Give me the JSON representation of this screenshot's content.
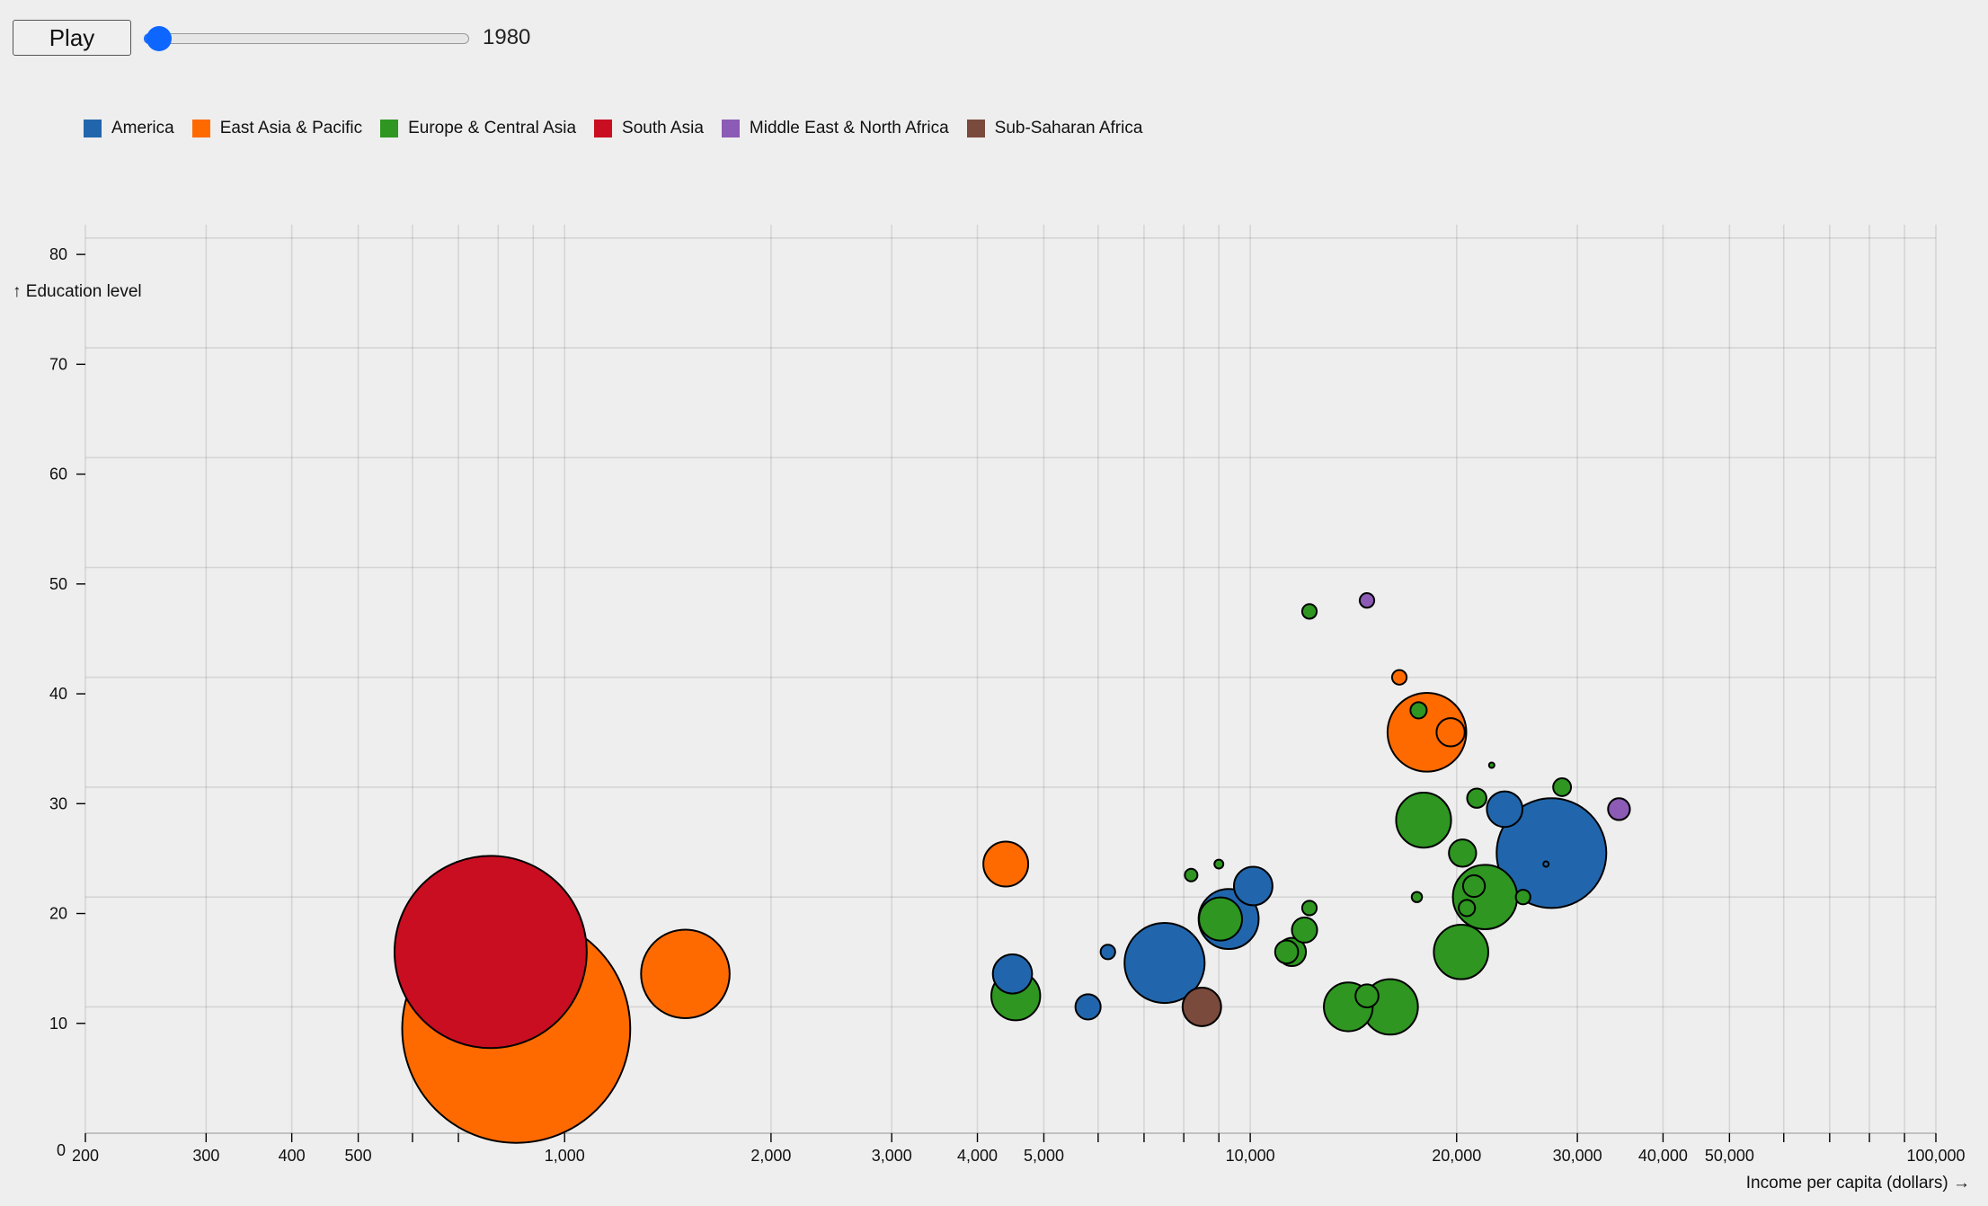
{
  "controls": {
    "play_label": "Play",
    "year": "1980",
    "slider_position": 0
  },
  "legend": [
    {
      "label": "America",
      "color": "#2166ac"
    },
    {
      "label": "East Asia & Pacific",
      "color": "#ff6a00"
    },
    {
      "label": "Europe & Central Asia",
      "color": "#2e9621"
    },
    {
      "label": "South Asia",
      "color": "#c90e21"
    },
    {
      "label": "Middle East & North Africa",
      "color": "#8c5bb5"
    },
    {
      "label": "Sub-Saharan Africa",
      "color": "#7a4a3c"
    }
  ],
  "chart_data": {
    "type": "scatter",
    "subtype": "bubble",
    "xlabel": "Income per capita (dollars) →",
    "ylabel": "↑ Education level",
    "xscale": "log",
    "xlim": [
      200,
      100000
    ],
    "ylim": [
      0,
      85
    ],
    "grid": true,
    "legend_position": "top-left",
    "x_ticks": [
      {
        "value": 200,
        "label": "200"
      },
      {
        "value": 300,
        "label": "300"
      },
      {
        "value": 400,
        "label": "400"
      },
      {
        "value": 500,
        "label": "500"
      },
      {
        "value": 600,
        "label": ""
      },
      {
        "value": 700,
        "label": ""
      },
      {
        "value": 800,
        "label": ""
      },
      {
        "value": 900,
        "label": ""
      },
      {
        "value": 1000,
        "label": "1,000"
      },
      {
        "value": 2000,
        "label": "2,000"
      },
      {
        "value": 3000,
        "label": "3,000"
      },
      {
        "value": 4000,
        "label": "4,000"
      },
      {
        "value": 5000,
        "label": "5,000"
      },
      {
        "value": 6000,
        "label": ""
      },
      {
        "value": 7000,
        "label": ""
      },
      {
        "value": 8000,
        "label": ""
      },
      {
        "value": 9000,
        "label": ""
      },
      {
        "value": 10000,
        "label": "10,000"
      },
      {
        "value": 20000,
        "label": "20,000"
      },
      {
        "value": 30000,
        "label": "30,000"
      },
      {
        "value": 40000,
        "label": "40,000"
      },
      {
        "value": 50000,
        "label": "50,000"
      },
      {
        "value": 60000,
        "label": ""
      },
      {
        "value": 70000,
        "label": ""
      },
      {
        "value": 80000,
        "label": ""
      },
      {
        "value": 90000,
        "label": ""
      },
      {
        "value": 100000,
        "label": "100,000"
      }
    ],
    "y_ticks": [
      {
        "value": 0,
        "label": "0"
      },
      {
        "value": 10,
        "label": "10"
      },
      {
        "value": 20,
        "label": "20"
      },
      {
        "value": 30,
        "label": "30"
      },
      {
        "value": 40,
        "label": "40"
      },
      {
        "value": 50,
        "label": "50"
      },
      {
        "value": 60,
        "label": "60"
      },
      {
        "value": 70,
        "label": "70"
      },
      {
        "value": 80,
        "label": "80"
      }
    ],
    "y_gridlines": [
      11.5,
      21.5,
      31.5,
      41.5,
      51.5,
      61.5,
      71.5,
      81.5
    ],
    "size_unit": "population (millions, estimated)",
    "points": [
      {
        "region": "East Asia & Pacific",
        "x": 850,
        "y": 9.5,
        "size": 981
      },
      {
        "region": "South Asia",
        "x": 780,
        "y": 16.5,
        "size": 697
      },
      {
        "region": "East Asia & Pacific",
        "x": 1500,
        "y": 14.5,
        "size": 148
      },
      {
        "region": "East Asia & Pacific",
        "x": 4400,
        "y": 24.5,
        "size": 38
      },
      {
        "region": "America",
        "x": 4500,
        "y": 14.5,
        "size": 29
      },
      {
        "region": "Europe & Central Asia",
        "x": 4550,
        "y": 12.5,
        "size": 45
      },
      {
        "region": "America",
        "x": 5800,
        "y": 11.5,
        "size": 12
      },
      {
        "region": "America",
        "x": 6200,
        "y": 16.5,
        "size": 4
      },
      {
        "region": "America",
        "x": 7500,
        "y": 15.5,
        "size": 121
      },
      {
        "region": "Sub-Saharan Africa",
        "x": 8500,
        "y": 11.5,
        "size": 28
      },
      {
        "region": "Europe & Central Asia",
        "x": 8200,
        "y": 23.5,
        "size": 3
      },
      {
        "region": "Europe & Central Asia",
        "x": 9000,
        "y": 24.5,
        "size": 1.5
      },
      {
        "region": "America",
        "x": 9300,
        "y": 19.5,
        "size": 68
      },
      {
        "region": "Europe & Central Asia",
        "x": 9050,
        "y": 19.5,
        "size": 35
      },
      {
        "region": "America",
        "x": 10100,
        "y": 22.5,
        "size": 28
      },
      {
        "region": "Europe & Central Asia",
        "x": 11300,
        "y": 16.5,
        "size": 10
      },
      {
        "region": "Europe & Central Asia",
        "x": 11500,
        "y": 16.5,
        "size": 15
      },
      {
        "region": "Europe & Central Asia",
        "x": 12000,
        "y": 18.5,
        "size": 12
      },
      {
        "region": "Europe & Central Asia",
        "x": 12200,
        "y": 20.5,
        "size": 4
      },
      {
        "region": "Europe & Central Asia",
        "x": 12200,
        "y": 47.5,
        "size": 4
      },
      {
        "region": "Europe & Central Asia",
        "x": 13900,
        "y": 11.5,
        "size": 45
      },
      {
        "region": "Europe & Central Asia",
        "x": 14800,
        "y": 12.5,
        "size": 10
      },
      {
        "region": "Middle East & North Africa",
        "x": 14800,
        "y": 48.5,
        "size": 4
      },
      {
        "region": "Europe & Central Asia",
        "x": 16000,
        "y": 11.5,
        "size": 58
      },
      {
        "region": "East Asia & Pacific",
        "x": 16500,
        "y": 41.5,
        "size": 4
      },
      {
        "region": "Europe & Central Asia",
        "x": 17500,
        "y": 21.5,
        "size": 2
      },
      {
        "region": "Europe & Central Asia",
        "x": 17600,
        "y": 38.5,
        "size": 5
      },
      {
        "region": "Europe & Central Asia",
        "x": 17900,
        "y": 28.5,
        "size": 57
      },
      {
        "region": "East Asia & Pacific",
        "x": 18100,
        "y": 36.5,
        "size": 117
      },
      {
        "region": "East Asia & Pacific",
        "x": 19600,
        "y": 36.5,
        "size": 15
      },
      {
        "region": "Europe & Central Asia",
        "x": 20300,
        "y": 16.5,
        "size": 56
      },
      {
        "region": "Europe & Central Asia",
        "x": 20400,
        "y": 25.5,
        "size": 14
      },
      {
        "region": "Europe & Central Asia",
        "x": 20700,
        "y": 20.5,
        "size": 5
      },
      {
        "region": "Europe & Central Asia",
        "x": 21200,
        "y": 22.5,
        "size": 9
      },
      {
        "region": "Europe & Central Asia",
        "x": 21400,
        "y": 30.5,
        "size": 7
      },
      {
        "region": "Europe & Central Asia",
        "x": 22000,
        "y": 21.5,
        "size": 78
      },
      {
        "region": "Europe & Central Asia",
        "x": 22500,
        "y": 33.5,
        "size": 0.4
      },
      {
        "region": "America",
        "x": 23500,
        "y": 29.5,
        "size": 24
      },
      {
        "region": "Europe & Central Asia",
        "x": 25000,
        "y": 21.5,
        "size": 4
      },
      {
        "region": "America",
        "x": 27500,
        "y": 25.5,
        "size": 227
      },
      {
        "region": "America",
        "x": 27000,
        "y": 24.5,
        "size": 0.3
      },
      {
        "region": "Europe & Central Asia",
        "x": 28500,
        "y": 31.5,
        "size": 6
      },
      {
        "region": "Middle East & North Africa",
        "x": 34500,
        "y": 29.5,
        "size": 9
      }
    ]
  }
}
